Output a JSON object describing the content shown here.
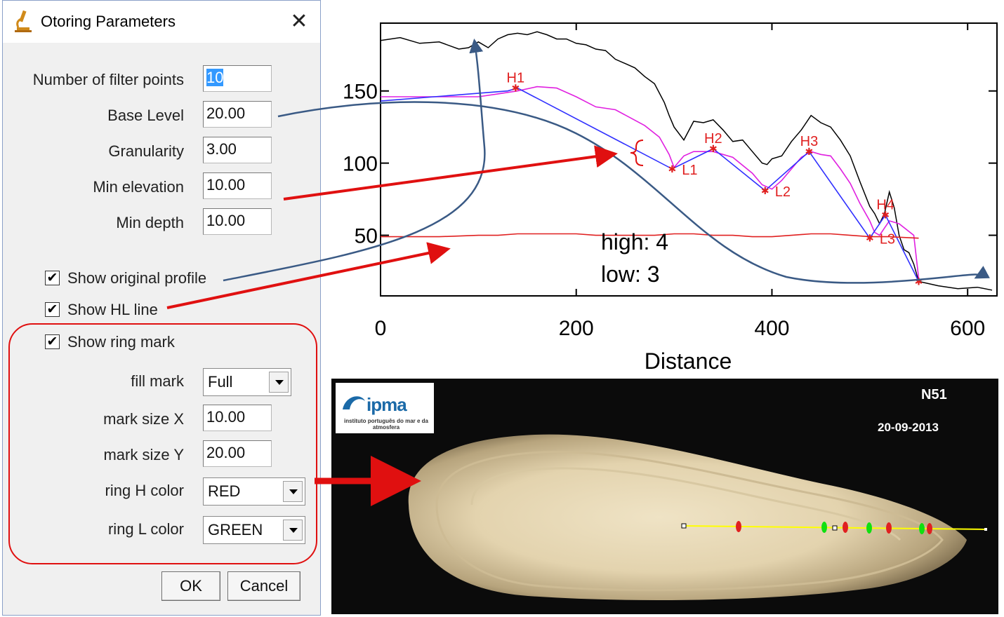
{
  "dialog": {
    "title": "Otoring Parameters",
    "close_glyph": "✕",
    "fields": [
      {
        "label": "Number of filter points",
        "value": "10"
      },
      {
        "label": "Base Level",
        "value": "20.00"
      },
      {
        "label": "Granularity",
        "value": "3.00"
      },
      {
        "label": "Min elevation",
        "value": "10.00"
      },
      {
        "label": "Min depth",
        "value": "10.00"
      }
    ],
    "checkboxes": [
      {
        "label": "Show original profile",
        "checked": true
      },
      {
        "label": "Show HL line",
        "checked": true
      },
      {
        "label": "Show ring mark",
        "checked": true
      }
    ],
    "check_glyph": "✔",
    "ring": {
      "fill_mark_label": "fill mark",
      "fill_mark_value": "Full",
      "mark_size_x_label": "mark size X",
      "mark_size_x_value": "10.00",
      "mark_size_y_label": "mark size Y",
      "mark_size_y_value": "20.00",
      "ring_h_color_label": "ring H color",
      "ring_h_color_value": "RED",
      "ring_l_color_label": "ring L color",
      "ring_l_color_value": "GREEN"
    },
    "ok_label": "OK",
    "cancel_label": "Cancel"
  },
  "chart_data": {
    "type": "line",
    "xlabel": "Distance",
    "ylabel": "",
    "xlim": [
      0,
      630
    ],
    "ylim": [
      8,
      197
    ],
    "x_ticks": [
      0,
      200,
      400,
      600
    ],
    "y_ticks": [
      50,
      100,
      150
    ],
    "grid": false,
    "series": [
      {
        "color": "#000000",
        "x": [
          0,
          20,
          40,
          60,
          80,
          90,
          100,
          110,
          120,
          130,
          140,
          150,
          160,
          170,
          180,
          190,
          200,
          210,
          220,
          230,
          240,
          250,
          260,
          270,
          280,
          290,
          295,
          300,
          310,
          320,
          330,
          340,
          350,
          360,
          370,
          380,
          390,
          395,
          400,
          410,
          420,
          430,
          440,
          450,
          460,
          470,
          480,
          490,
          500,
          505,
          510,
          515,
          520,
          525,
          530,
          535,
          540,
          545,
          550,
          570,
          590,
          610,
          625
        ],
        "y": [
          185,
          187,
          183,
          184,
          179,
          180,
          184,
          180,
          186,
          189,
          190,
          189,
          191,
          189,
          186,
          186,
          183,
          182,
          179,
          178,
          172,
          169,
          166,
          160,
          155,
          142,
          133,
          125,
          116,
          129,
          128,
          130,
          123,
          115,
          116,
          108,
          100,
          99,
          103,
          105,
          115,
          123,
          133,
          128,
          125,
          116,
          105,
          87,
          70,
          65,
          58,
          65,
          80,
          69,
          50,
          40,
          38,
          30,
          18,
          15,
          13,
          14,
          12
        ]
      },
      {
        "color": "#e020e0",
        "x": [
          0,
          60,
          100,
          120,
          140,
          160,
          180,
          200,
          220,
          240,
          270,
          285,
          295,
          300,
          310,
          320,
          340,
          360,
          380,
          390,
          400,
          410,
          420,
          430,
          440,
          450,
          460,
          470,
          480,
          490,
          500,
          505,
          510,
          515,
          520,
          530,
          545,
          550
        ],
        "y": [
          146,
          146,
          146,
          148,
          150,
          153,
          152,
          146,
          139,
          137,
          126,
          118,
          106,
          97,
          105,
          108,
          108,
          104,
          93,
          85,
          82,
          88,
          96,
          104,
          108,
          106,
          105,
          96,
          86,
          72,
          60,
          52,
          50,
          55,
          60,
          58,
          50,
          20
        ]
      },
      {
        "color": "#3030ff",
        "x": [
          0,
          130,
          140,
          298,
          340,
          393,
          438,
          500,
          516,
          550
        ],
        "y": [
          143,
          150,
          152,
          96,
          110,
          81,
          108,
          48,
          64,
          18
        ]
      },
      {
        "color": "#e02020",
        "x": [
          0,
          60,
          100,
          120,
          140,
          160,
          180,
          200,
          220,
          240,
          260,
          280,
          300,
          320,
          340,
          360,
          380,
          400,
          420,
          440,
          460,
          480,
          500,
          520,
          550
        ],
        "y": [
          49,
          49,
          50,
          50,
          51,
          51,
          51,
          51,
          50,
          50,
          50,
          50,
          51,
          51,
          50,
          50,
          49,
          49,
          50,
          51,
          51,
          50,
          49,
          49,
          48
        ]
      }
    ],
    "markers": [
      {
        "x": 138,
        "y": 152,
        "label": "H1"
      },
      {
        "x": 298,
        "y": 96,
        "label": "L1"
      },
      {
        "x": 340,
        "y": 110,
        "label": "H2"
      },
      {
        "x": 393,
        "y": 81,
        "label": "L2"
      },
      {
        "x": 438,
        "y": 108,
        "label": "H3"
      },
      {
        "x": 500,
        "y": 48,
        "label": "L3"
      },
      {
        "x": 516,
        "y": 64,
        "label": "H4"
      },
      {
        "x": 550,
        "y": 18,
        "label": ""
      }
    ],
    "annotation": [
      "high: 4",
      "low: 3"
    ]
  },
  "photo": {
    "logo_text": "ipma",
    "logo_subtitle": "instituto português do mar e da atmosfera",
    "sample_id": "N51",
    "date": "20-09-2013"
  }
}
